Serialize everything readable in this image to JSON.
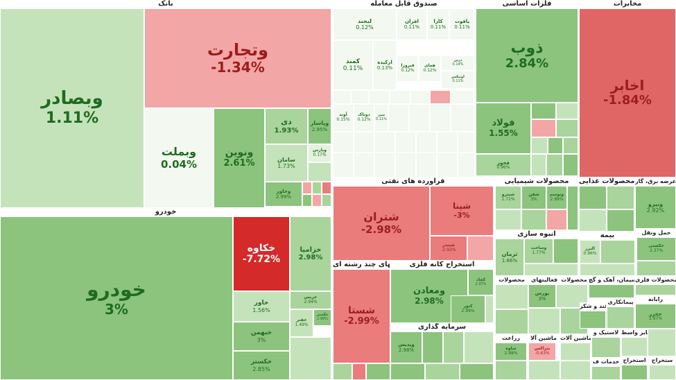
{
  "colors": {
    "pos_strong": "#8cc47e",
    "pos_mid": "#a9d49c",
    "pos_light": "#c5e3bb",
    "pos_faint": "#e4f2de",
    "neutral": "#f3f8f1",
    "neg_light": "#f2a6a6",
    "neg_mid": "#ea7c7c",
    "neg_strong": "#e06666",
    "neg_deep": "#d42a2a",
    "text_pos": "#1f6b1f",
    "text_neg": "#9e1c1c",
    "text_dark": "#333333",
    "text_white": "#ffffff"
  },
  "chart_data": {
    "type": "treemap",
    "sectors": [
      {
        "name": "بانک"
      },
      {
        "name": "صندوق قابل معامله"
      },
      {
        "name": "فلزات اساسی"
      },
      {
        "name": "مخابرات"
      },
      {
        "name": "خودرو"
      },
      {
        "name": "فراورده های نفتی"
      },
      {
        "name": "محصولات شیمیایی"
      },
      {
        "name": "محصولات غذایی"
      },
      {
        "name": "عرضه برق، گاز"
      },
      {
        "name": "حمل ونقل"
      },
      {
        "name": "بیمه"
      },
      {
        "name": "انبوه سازی"
      },
      {
        "name": "استخراج کانه فلزی"
      },
      {
        "name": "شرکتهای چند رشته ای"
      },
      {
        "name": "سرمایه گذاری"
      },
      {
        "name": "محصولات"
      },
      {
        "name": "فعالیتهای"
      },
      {
        "name": "محصولات"
      },
      {
        "name": "سیمان، آهک و گچ"
      },
      {
        "name": "محصولات فلزی"
      },
      {
        "name": "رایانه"
      },
      {
        "name": "پیمانکاری"
      },
      {
        "name": "قند و شکر"
      },
      {
        "name": "ماشین آلا"
      },
      {
        "name": "ماشین آلات"
      },
      {
        "name": "لاستیک و"
      },
      {
        "name": "سایر واسط"
      },
      {
        "name": "زراعت"
      },
      {
        "name": "خدمات ف"
      },
      {
        "name": "استخراج"
      },
      {
        "name": "ستخراج"
      }
    ],
    "tiles": [
      {
        "name": "وبصادر",
        "change": "1.11%"
      },
      {
        "name": "وتجارت",
        "change": "-1.34%"
      },
      {
        "name": "وبملت",
        "change": "0.04%"
      },
      {
        "name": "ونوین",
        "change": "2.61%"
      },
      {
        "name": "دی",
        "change": "1.93%"
      },
      {
        "name": "وپاسار",
        "change": "2.95%"
      },
      {
        "name": "سامان",
        "change": "1.73%"
      },
      {
        "name": "وپارس",
        "change": "0.17%"
      },
      {
        "name": "وخاور",
        "change": "2.99%"
      },
      {
        "name": "لبخند",
        "change": "0.12%"
      },
      {
        "name": "افران",
        "change": "0.11%"
      },
      {
        "name": "کارا",
        "change": "0.11%"
      },
      {
        "name": "یاقوت",
        "change": "0.11%"
      },
      {
        "name": "کمند",
        "change": "0.11%"
      },
      {
        "name": "ارکیده",
        "change": "0.13%"
      },
      {
        "name": "فیروزا",
        "change": "0.12%"
      },
      {
        "name": "همای",
        "change": "0.12%"
      },
      {
        "name": "درین",
        "change": "0.14%"
      },
      {
        "name": "اوتیکس",
        "change": "0.11%"
      },
      {
        "name": "آوند",
        "change": "0.15%"
      },
      {
        "name": "دوتاک",
        "change": "0.12%"
      },
      {
        "name": "سپر",
        "change": "0.11%"
      },
      {
        "name": "ذوب",
        "change": "2.84%"
      },
      {
        "name": "فولاد",
        "change": "1.55%"
      },
      {
        "name": "فخوز",
        "change": "0.96%"
      },
      {
        "name": "اخابر",
        "change": "-1.84%"
      },
      {
        "name": "خودرو",
        "change": "3%"
      },
      {
        "name": "خکاوه",
        "change": "-7.72%"
      },
      {
        "name": "خزامیا",
        "change": "2.98%"
      },
      {
        "name": "خاور",
        "change": "1.56%"
      },
      {
        "name": "خبهمن",
        "change": "3%"
      },
      {
        "name": "خکستر",
        "change": "2.85%"
      },
      {
        "name": "خریس",
        "change": "2.94%"
      },
      {
        "name": "خگستر",
        "change": "2.99%"
      },
      {
        "name": "خفنر",
        "change": "1.49%"
      },
      {
        "name": "شتران",
        "change": "-2.98%"
      },
      {
        "name": "شپنا",
        "change": "-3%"
      },
      {
        "name": "شبندر",
        "change": "-2.92%"
      },
      {
        "name": "ومعادن",
        "change": "2.98%"
      },
      {
        "name": "کچاد",
        "change": "2.97%"
      },
      {
        "name": "کنور",
        "change": "2.99%"
      },
      {
        "name": "شستا",
        "change": "-2.99%"
      },
      {
        "name": "وپدیس",
        "change": "2.98%"
      },
      {
        "name": "شپترو",
        "change": "1.71%"
      },
      {
        "name": "شفن",
        "change": "3%"
      },
      {
        "name": "وتوسم",
        "change": "2.99%"
      },
      {
        "name": "ونیرو",
        "change": "2.92%"
      },
      {
        "name": "ثرمان",
        "change": "1.86%"
      },
      {
        "name": "وساخت",
        "change": "1.77%"
      },
      {
        "name": "البرز",
        "change": "0.96%"
      },
      {
        "name": "حکشتی",
        "change": "2.37%"
      },
      {
        "name": "بورس",
        "change": "3%"
      },
      {
        "name": "حخزر",
        "change": "2.97%"
      },
      {
        "name": "بتراکس",
        "change": "-0.63%"
      },
      {
        "name": "ساوه",
        "change": "2.98%"
      }
    ]
  }
}
